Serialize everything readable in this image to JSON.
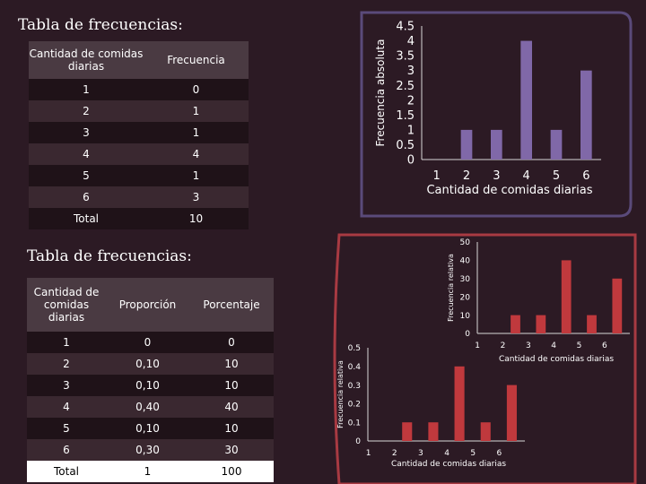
{
  "table1": {
    "title": "Tabla de frecuencias:",
    "headers": [
      "Cantidad de comidas diarias",
      "Frecuencia"
    ],
    "rows": [
      [
        "1",
        "0"
      ],
      [
        "2",
        "1"
      ],
      [
        "3",
        "1"
      ],
      [
        "4",
        "4"
      ],
      [
        "5",
        "1"
      ],
      [
        "6",
        "3"
      ]
    ],
    "total": [
      "Total",
      "10"
    ]
  },
  "table2": {
    "title": "Tabla de frecuencias:",
    "headers": [
      "Cantidad de comidas diarias",
      "Proporción",
      "Porcentaje"
    ],
    "rows": [
      [
        "1",
        "0",
        "0"
      ],
      [
        "2",
        "0,10",
        "10"
      ],
      [
        "3",
        "0,10",
        "10"
      ],
      [
        "4",
        "0,40",
        "40"
      ],
      [
        "5",
        "0,10",
        "10"
      ],
      [
        "6",
        "0,30",
        "30"
      ]
    ],
    "total": [
      "Total",
      "1",
      "100"
    ]
  },
  "chart_data": [
    {
      "type": "bar",
      "categories": [
        "1",
        "2",
        "3",
        "4",
        "5",
        "6"
      ],
      "values": [
        0,
        1,
        1,
        4,
        1,
        3
      ],
      "xlabel": "Cantidad de comidas diarias",
      "ylabel": "Frecuencia absoluta",
      "ylim": [
        0,
        4.5
      ],
      "yticks": [
        "0",
        "0.5",
        "1",
        "1.5",
        "2",
        "2.5",
        "3",
        "3.5",
        "4",
        "4.5"
      ],
      "color": "#8068a8"
    },
    {
      "type": "bar",
      "categories": [
        "1",
        "2",
        "3",
        "4",
        "5",
        "6"
      ],
      "values": [
        0,
        10,
        10,
        40,
        10,
        30
      ],
      "xlabel": "Cantidad de comidas diarias",
      "ylabel": "Frecuencia relativa",
      "ylim": [
        0,
        50
      ],
      "yticks": [
        "0",
        "10",
        "20",
        "30",
        "40",
        "50"
      ],
      "color": "#c0393d"
    },
    {
      "type": "bar",
      "categories": [
        "1",
        "2",
        "3",
        "4",
        "5",
        "6"
      ],
      "values": [
        0,
        0.1,
        0.1,
        0.4,
        0.1,
        0.3
      ],
      "xlabel": "Cantidad de comidas diarias",
      "ylabel": "Frecuencia relativa",
      "ylim": [
        0,
        0.5
      ],
      "yticks": [
        "0",
        "0.1",
        "0.2",
        "0.3",
        "0.4",
        "0.5"
      ],
      "color": "#c0393d"
    }
  ]
}
